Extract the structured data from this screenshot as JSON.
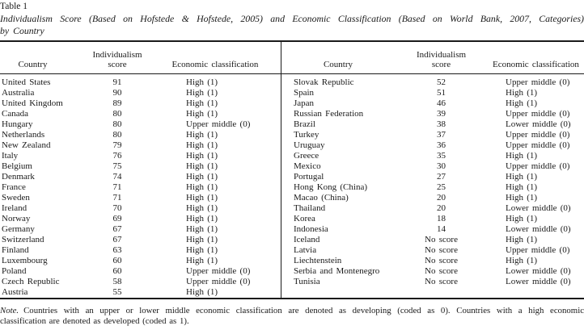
{
  "caption": {
    "label": "Table 1",
    "title_line1": "Individualism Score (Based on Hofstede & Hofstede, 2005) and Economic Classification (Based on World Bank, 2007, Categories)",
    "title_line2": "by Country"
  },
  "header": {
    "country": "Country",
    "score_line1": "Individualism",
    "score_line2": "score",
    "classification": "Economic classification"
  },
  "left_table": {
    "rows": [
      {
        "country": "United States",
        "score": "91",
        "classification": "High (1)"
      },
      {
        "country": "Australia",
        "score": "90",
        "classification": "High (1)"
      },
      {
        "country": "United Kingdom",
        "score": "89",
        "classification": "High (1)"
      },
      {
        "country": "Canada",
        "score": "80",
        "classification": "High (1)"
      },
      {
        "country": "Hungary",
        "score": "80",
        "classification": "Upper middle (0)"
      },
      {
        "country": "Netherlands",
        "score": "80",
        "classification": "High (1)"
      },
      {
        "country": "New Zealand",
        "score": "79",
        "classification": "High (1)"
      },
      {
        "country": "Italy",
        "score": "76",
        "classification": "High (1)"
      },
      {
        "country": "Belgium",
        "score": "75",
        "classification": "High (1)"
      },
      {
        "country": "Denmark",
        "score": "74",
        "classification": "High (1)"
      },
      {
        "country": "France",
        "score": "71",
        "classification": "High (1)"
      },
      {
        "country": "Sweden",
        "score": "71",
        "classification": "High (1)"
      },
      {
        "country": "Ireland",
        "score": "70",
        "classification": "High (1)"
      },
      {
        "country": "Norway",
        "score": "69",
        "classification": "High (1)"
      },
      {
        "country": "Germany",
        "score": "67",
        "classification": "High (1)"
      },
      {
        "country": "Switzerland",
        "score": "67",
        "classification": "High (1)"
      },
      {
        "country": "Finland",
        "score": "63",
        "classification": "High (1)"
      },
      {
        "country": "Luxembourg",
        "score": "60",
        "classification": "High (1)"
      },
      {
        "country": "Poland",
        "score": "60",
        "classification": "Upper middle (0)"
      },
      {
        "country": "Czech Republic",
        "score": "58",
        "classification": "Upper middle (0)"
      },
      {
        "country": "Austria",
        "score": "55",
        "classification": "High (1)"
      }
    ]
  },
  "right_table": {
    "rows": [
      {
        "country": "Slovak Republic",
        "score": "52",
        "classification": "Upper middle (0)"
      },
      {
        "country": "Spain",
        "score": "51",
        "classification": "High (1)"
      },
      {
        "country": "Japan",
        "score": "46",
        "classification": "High (1)"
      },
      {
        "country": "Russian Federation",
        "score": "39",
        "classification": "Upper middle (0)"
      },
      {
        "country": "Brazil",
        "score": "38",
        "classification": "Lower middle (0)"
      },
      {
        "country": "Turkey",
        "score": "37",
        "classification": "Upper middle (0)"
      },
      {
        "country": "Uruguay",
        "score": "36",
        "classification": "Upper middle (0)"
      },
      {
        "country": "Greece",
        "score": "35",
        "classification": "High (1)"
      },
      {
        "country": "Mexico",
        "score": "30",
        "classification": "Upper middle (0)"
      },
      {
        "country": "Portugal",
        "score": "27",
        "classification": "High (1)"
      },
      {
        "country": "Hong Kong (China)",
        "score": "25",
        "classification": "High (1)"
      },
      {
        "country": "Macao (China)",
        "score": "20",
        "classification": "High (1)"
      },
      {
        "country": "Thailand",
        "score": "20",
        "classification": "Lower middle (0)"
      },
      {
        "country": "Korea",
        "score": "18",
        "classification": "High (1)"
      },
      {
        "country": "Indonesia",
        "score": "14",
        "classification": "Lower middle (0)"
      },
      {
        "country": "Iceland",
        "score": "No score",
        "classification": "High (1)"
      },
      {
        "country": "Latvia",
        "score": "No score",
        "classification": "Upper middle (0)"
      },
      {
        "country": "Liechtenstein",
        "score": "No score",
        "classification": "High (1)"
      },
      {
        "country": "Serbia and Montenegro",
        "score": "No score",
        "classification": "Lower middle (0)"
      },
      {
        "country": "Tunisia",
        "score": "No score",
        "classification": "Lower middle (0)"
      }
    ]
  },
  "note": {
    "label": "Note.",
    "line1": "Countries with an upper or lower middle economic classification are denoted as developing (coded as 0). Countries with a high economic",
    "line2": "classification are denoted as developed (coded as 1)."
  }
}
